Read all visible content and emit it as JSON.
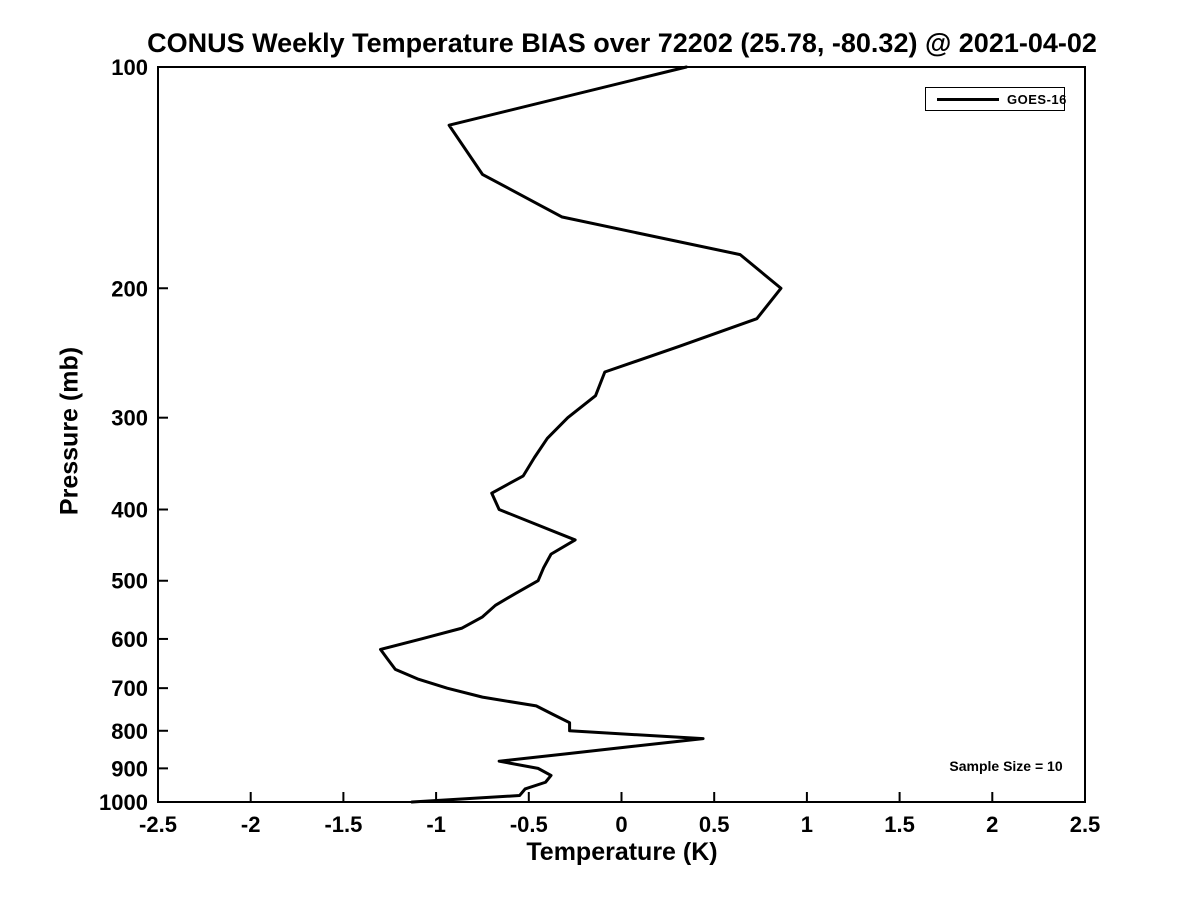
{
  "title": "CONUS Weekly Temperature BIAS over 72202 (25.78, -80.32) @ 2021-04-02",
  "annotation": "Sample Size = 10",
  "legend": {
    "position": "top-right",
    "border_color": "#000000",
    "entries": [
      {
        "label": "GOES-16",
        "color": "#000000"
      }
    ]
  },
  "chart_data": {
    "type": "line",
    "title": "CONUS Weekly Temperature BIAS over 72202 (25.78, -80.32) @ 2021-04-02",
    "xlabel": "Temperature (K)",
    "ylabel": "Pressure (mb)",
    "xlim": [
      -2.5,
      2.5
    ],
    "ylim": [
      100,
      1000
    ],
    "yscale": "log",
    "y_axis_inverted": true,
    "grid": false,
    "legend_position": "top-right",
    "sample_size": 10,
    "xticks": [
      -2.5,
      -2,
      -1.5,
      -1,
      -0.5,
      0,
      0.5,
      1,
      1.5,
      2,
      2.5
    ],
    "xtick_labels": [
      "-2.5",
      "-2",
      "-1.5",
      "-1",
      "-0.5",
      "0",
      "0.5",
      "1",
      "1.5",
      "2",
      "2.5"
    ],
    "yticks": [
      100,
      200,
      300,
      400,
      500,
      600,
      700,
      800,
      900,
      1000
    ],
    "ytick_labels": [
      "100",
      "200",
      "300",
      "400",
      "500",
      "600",
      "700",
      "800",
      "900",
      "1000"
    ],
    "series": [
      {
        "name": "GOES-16",
        "color": "#000000",
        "line_width": 3,
        "pressure_mb": [
          100,
          120,
          140,
          160,
          180,
          200,
          220,
          240,
          260,
          280,
          300,
          320,
          340,
          360,
          380,
          400,
          420,
          440,
          460,
          480,
          500,
          520,
          540,
          560,
          580,
          600,
          620,
          640,
          660,
          680,
          700,
          720,
          740,
          760,
          780,
          800,
          820,
          840,
          860,
          880,
          900,
          920,
          940,
          960,
          980,
          1000
        ],
        "temperature_bias_k": [
          0.35,
          -0.93,
          -0.75,
          -0.32,
          0.64,
          0.86,
          0.73,
          0.31,
          -0.09,
          -0.14,
          -0.29,
          -0.4,
          -0.47,
          -0.53,
          -0.7,
          -0.66,
          -0.45,
          -0.25,
          -0.38,
          -0.42,
          -0.45,
          -0.57,
          -0.68,
          -0.75,
          -0.86,
          -1.08,
          -1.3,
          -1.26,
          -1.22,
          -1.1,
          -0.94,
          -0.75,
          -0.46,
          -0.37,
          -0.28,
          -0.28,
          0.44,
          0.06,
          -0.3,
          -0.66,
          -0.45,
          -0.38,
          -0.41,
          -0.52,
          -0.55,
          -1.13
        ]
      }
    ]
  }
}
